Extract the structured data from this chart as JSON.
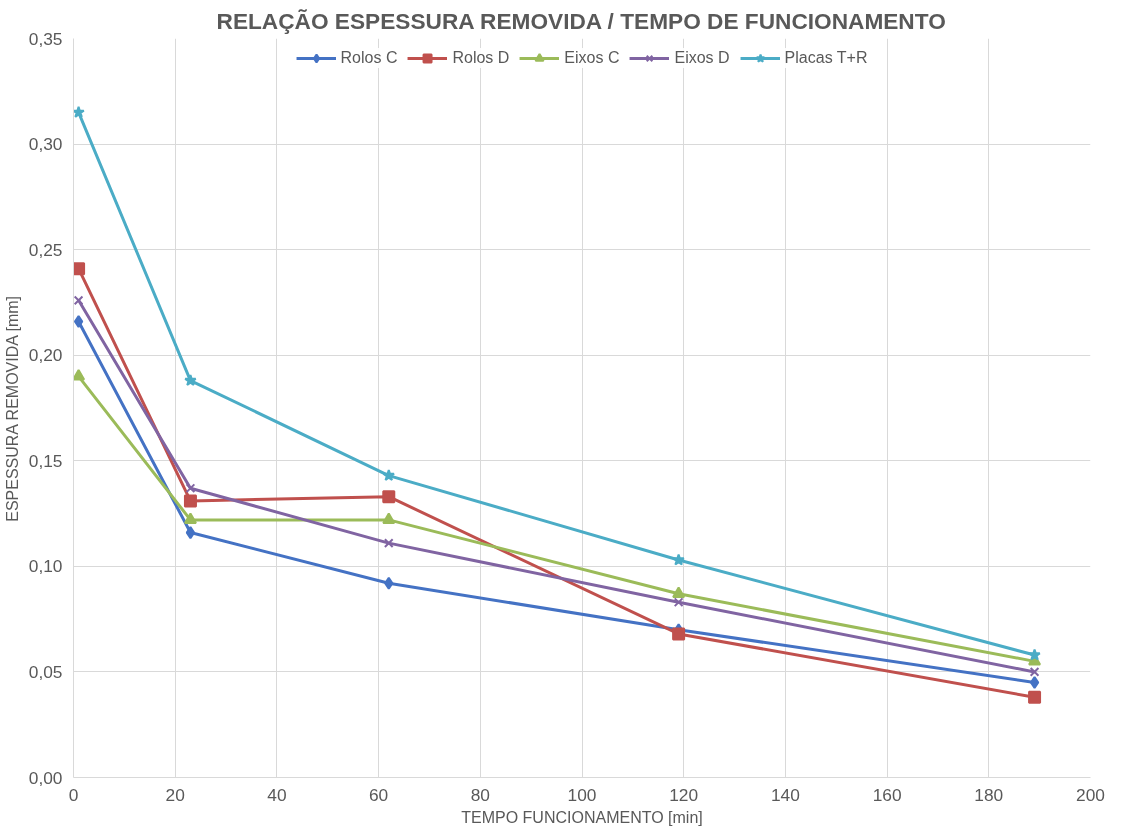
{
  "chart_data": {
    "type": "line",
    "title": "RELAÇÃO ESPESSURA REMOVIDA / TEMPO DE FUNCIONAMENTO",
    "xlabel": "TEMPO FUNCIONAMENTO [min]",
    "ylabel": "ESPESSURA REMOVIDA [mm]",
    "x": [
      1,
      23,
      62,
      119,
      189
    ],
    "series": [
      {
        "name": "Rolos C",
        "color": "#4472c4",
        "marker": "diamond",
        "values": [
          0.216,
          0.116,
          0.092,
          0.07,
          0.045
        ]
      },
      {
        "name": "Rolos D",
        "color": "#c0504d",
        "marker": "square",
        "values": [
          0.241,
          0.131,
          0.133,
          0.068,
          0.038
        ]
      },
      {
        "name": "Eixos C",
        "color": "#9bbb59",
        "marker": "triangle",
        "values": [
          0.19,
          0.122,
          0.122,
          0.087,
          0.055
        ]
      },
      {
        "name": "Eixos D",
        "color": "#8064a2",
        "marker": "cross",
        "values": [
          0.226,
          0.137,
          0.111,
          0.083,
          0.05
        ]
      },
      {
        "name": "Placas T+R",
        "color": "#4bacc6",
        "marker": "star",
        "values": [
          0.315,
          0.188,
          0.143,
          0.103,
          0.058
        ]
      }
    ],
    "xlim": [
      0,
      200
    ],
    "xticks": [
      0,
      20,
      40,
      60,
      80,
      100,
      120,
      140,
      160,
      180,
      200
    ],
    "ylim": [
      0,
      0.35
    ],
    "yticks": [
      {
        "value": 0,
        "label": "0,00"
      },
      {
        "value": 0.05,
        "label": "0,05"
      },
      {
        "value": 0.1,
        "label": "0,10"
      },
      {
        "value": 0.15,
        "label": "0,15"
      },
      {
        "value": 0.2,
        "label": "0,20"
      },
      {
        "value": 0.25,
        "label": "0,25"
      },
      {
        "value": 0.3,
        "label": "0,30"
      },
      {
        "value": 0.35,
        "label": "0,35"
      }
    ],
    "grid": true,
    "legend": "top",
    "line_style": "solid"
  }
}
